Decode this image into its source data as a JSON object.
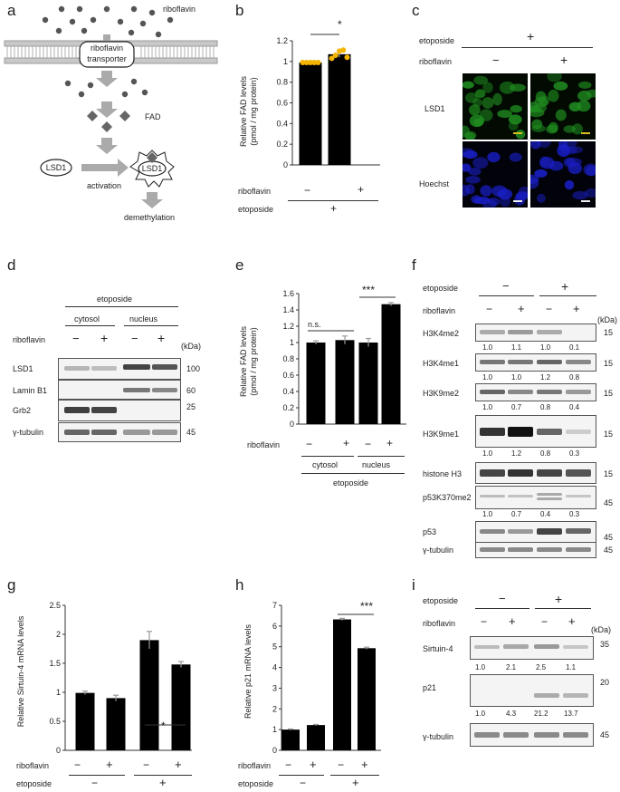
{
  "panel_labels": {
    "a": "a",
    "b": "b",
    "c": "c",
    "d": "d",
    "e": "e",
    "f": "f",
    "g": "g",
    "h": "h",
    "i": "i"
  },
  "panel_a": {
    "riboflavin": "riboflavin",
    "transporter_line1": "riboflavin",
    "transporter_line2": "transporter",
    "fad": "FAD",
    "lsd1": "LSD1",
    "lsd1_active": "LSD1",
    "activation": "activation",
    "demethylation": "demethylation"
  },
  "panel_b": {
    "ylabel": "Relative FAD levels\n(pmol / mg protein)",
    "yticks": [
      "0",
      "0.2",
      "0.4",
      "0.6",
      "0.8",
      "1",
      "1.2"
    ],
    "sig": "*",
    "row1_label": "riboflavin",
    "row1_vals": [
      "−",
      "+"
    ],
    "row2_label": "etoposide",
    "row2_val": "+"
  },
  "panel_c": {
    "etoposide": "etoposide",
    "etoposide_val": "+",
    "riboflavin": "riboflavin",
    "ribo_vals": [
      "−",
      "+"
    ],
    "row1": "LSD1",
    "row2": "Hoechst",
    "green": "#1f8a1f",
    "blue": "#1a1fc8"
  },
  "panel_d": {
    "etoposide": "etoposide",
    "cytosol": "cytosol",
    "nucleus": "nucleus",
    "riboflavin": "riboflavin",
    "ribo_vals": [
      "−",
      "+",
      "−",
      "+"
    ],
    "kda": "(kDa)",
    "rows": [
      {
        "label": "LSD1",
        "kda": "100"
      },
      {
        "label": "Lamin B1",
        "kda": "60"
      },
      {
        "label": "Grb2",
        "kda": "25"
      },
      {
        "label": "γ-tubulin",
        "kda": "45"
      }
    ]
  },
  "panel_e": {
    "ylabel": "Relative FAD levels\n(pmol / mg protein)",
    "yticks": [
      "0",
      "0.2",
      "0.4",
      "0.6",
      "0.8",
      "1",
      "1.2",
      "1.4",
      "1.6"
    ],
    "ns": "n.s.",
    "sig": "***",
    "riboflavin": "riboflavin",
    "ribo_vals": [
      "−",
      "+",
      "−",
      "+"
    ],
    "cytosol": "cytosol",
    "nucleus": "nucleus",
    "etoposide": "etoposide"
  },
  "panel_f": {
    "etoposide": "etoposide",
    "eto_vals": [
      "−",
      "+"
    ],
    "riboflavin": "riboflavin",
    "ribo_vals": [
      "−",
      "+",
      "−",
      "+"
    ],
    "kda": "(kDa)",
    "rows": [
      {
        "label": "H3K4me2",
        "kda": "15",
        "quant": [
          "1.0",
          "1.1",
          "1.0",
          "0.1"
        ]
      },
      {
        "label": "H3K4me1",
        "kda": "15",
        "quant": [
          "1.0",
          "1.0",
          "1.2",
          "0.8"
        ]
      },
      {
        "label": "H3K9me2",
        "kda": "15",
        "quant": [
          "1.0",
          "0.7",
          "0.8",
          "0.4"
        ]
      },
      {
        "label": "H3K9me1",
        "kda": "15",
        "quant": [
          "1.0",
          "1.2",
          "0.8",
          "0.3"
        ]
      },
      {
        "label": "histone H3",
        "kda": "15",
        "quant": []
      },
      {
        "label": "p53K370me2",
        "kda": "45",
        "quant": [
          "1.0",
          "0.7",
          "0.4",
          "0.3"
        ]
      },
      {
        "label": "p53",
        "kda": "45",
        "quant": []
      },
      {
        "label": "γ-tubulin",
        "kda": "45",
        "quant": []
      }
    ]
  },
  "panel_g": {
    "ylabel": "Relative Sirtuin-4 mRNA levels",
    "yticks": [
      "0",
      "0.5",
      "1",
      "1.5",
      "2",
      "2.5"
    ],
    "sig": "*",
    "riboflavin": "riboflavin",
    "ribo_vals": [
      "−",
      "+",
      "−",
      "+"
    ],
    "etoposide": "etoposide",
    "eto_vals": [
      "−",
      "+"
    ]
  },
  "panel_h": {
    "ylabel": "Relative p21 mRNA levels",
    "yticks": [
      "0",
      "1",
      "2",
      "3",
      "4",
      "5",
      "6",
      "7"
    ],
    "sig": "***",
    "riboflavin": "riboflavin",
    "ribo_vals": [
      "−",
      "+",
      "−",
      "+"
    ],
    "etoposide": "etoposide",
    "eto_vals": [
      "−",
      "+"
    ]
  },
  "panel_i": {
    "etoposide": "etoposide",
    "eto_vals": [
      "−",
      "+"
    ],
    "riboflavin": "riboflavin",
    "ribo_vals": [
      "−",
      "+",
      "−",
      "+"
    ],
    "kda": "(kDa)",
    "rows": [
      {
        "label": "Sirtuin-4",
        "kda": "35",
        "quant": [
          "1.0",
          "2.1",
          "2.5",
          "1.1"
        ]
      },
      {
        "label": "p21",
        "kda": "20",
        "quant": [
          "1.0",
          "4.3",
          "21.2",
          "13.7"
        ]
      },
      {
        "label": "γ-tubulin",
        "kda": "45",
        "quant": []
      }
    ]
  },
  "chart_data": [
    {
      "type": "bar",
      "categories": [
        "−",
        "+"
      ],
      "values": [
        0.99,
        1.07
      ],
      "errors": [
        0.005,
        0.03
      ],
      "points": [
        [
          0.99,
          0.99,
          0.99,
          0.99,
          0.99
        ],
        [
          1.03,
          1.06,
          1.1,
          1.11,
          1.04
        ]
      ],
      "ylabel": "Relative FAD levels (pmol / mg protein)",
      "ylim": [
        0,
        1.2
      ],
      "grid": false
    },
    {
      "type": "bar",
      "categories": [
        "−",
        "+",
        "−",
        "+"
      ],
      "values": [
        1.0,
        1.03,
        1.0,
        1.47
      ],
      "errors": [
        0.02,
        0.05,
        0.05,
        0.02
      ],
      "ylabel": "Relative FAD levels (pmol / mg protein)",
      "ylim": [
        0,
        1.6
      ],
      "grid": false
    },
    {
      "type": "bar",
      "categories": [
        "−",
        "+",
        "−",
        "+"
      ],
      "values": [
        0.99,
        0.9,
        1.9,
        1.48
      ],
      "errors": [
        0.03,
        0.05,
        0.15,
        0.05
      ],
      "ylabel": "Relative Sirtuin-4 mRNA levels",
      "ylim": [
        0,
        2.5
      ],
      "grid": false
    },
    {
      "type": "bar",
      "categories": [
        "−",
        "+",
        "−",
        "+"
      ],
      "values": [
        1.0,
        1.22,
        6.32,
        4.93
      ],
      "errors": [
        0.03,
        0.03,
        0.05,
        0.05
      ],
      "ylabel": "Relative p21 mRNA levels",
      "ylim": [
        0,
        7
      ],
      "grid": false
    }
  ]
}
